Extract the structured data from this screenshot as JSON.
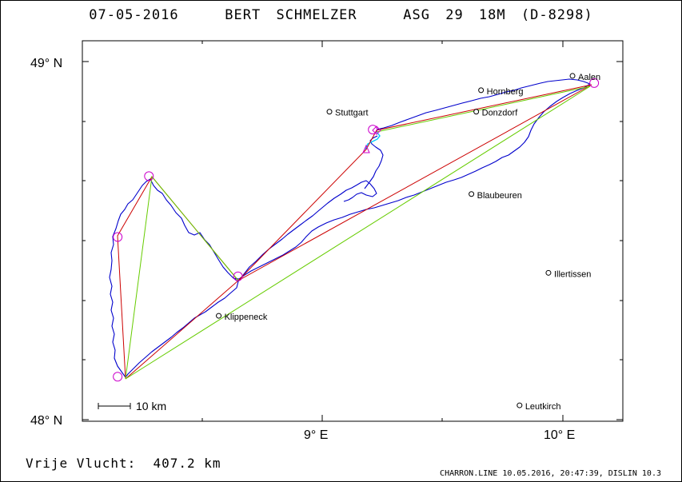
{
  "title": "07-05-2016   BERT SCHMELZER   ASG 29 18M (D-8298)",
  "axes": {
    "lat_labels": [
      "49° N",
      "48° N"
    ],
    "lon_labels": [
      "9° E",
      "10° E"
    ],
    "lon_range": [
      8.0,
      10.25
    ],
    "lat_range": [
      48.0,
      49.05
    ]
  },
  "scale_bar": {
    "label": "10 km"
  },
  "places": [
    {
      "name": "Stuttgart",
      "lon": 9.03,
      "lat": 48.86
    },
    {
      "name": "Hornberg",
      "lon": 9.66,
      "lat": 48.92
    },
    {
      "name": "Donzdorf",
      "lon": 9.64,
      "lat": 48.86
    },
    {
      "name": "Aalen",
      "lon": 10.04,
      "lat": 48.96
    },
    {
      "name": "Blaubeuren",
      "lon": 9.62,
      "lat": 48.63
    },
    {
      "name": "Klippeneck",
      "lon": 8.57,
      "lat": 48.29
    },
    {
      "name": "Illertissen",
      "lon": 9.94,
      "lat": 48.41
    },
    {
      "name": "Leutkirch",
      "lon": 9.82,
      "lat": 48.04
    }
  ],
  "turnpoints": [
    {
      "lon": 8.15,
      "lat": 48.12
    },
    {
      "lon": 8.15,
      "lat": 48.51
    },
    {
      "lon": 8.28,
      "lat": 48.68
    },
    {
      "lon": 8.65,
      "lat": 48.4
    },
    {
      "lon": 9.21,
      "lat": 48.81
    },
    {
      "lon": 10.13,
      "lat": 48.94
    }
  ],
  "start_point": {
    "lon": 9.17,
    "lat": 48.77
  },
  "colors": {
    "track": "#0000cc",
    "task_line": "#cc0000",
    "fai_line": "#66cc00",
    "turnpoint": "#cc00cc",
    "start_segment": "#00ccff"
  },
  "footer_left": "Vrije Vlucht:  407.2 km",
  "footer_right": "CHARRON.LINE 10.05.2016, 20:47:39, DISLIN 10.3"
}
